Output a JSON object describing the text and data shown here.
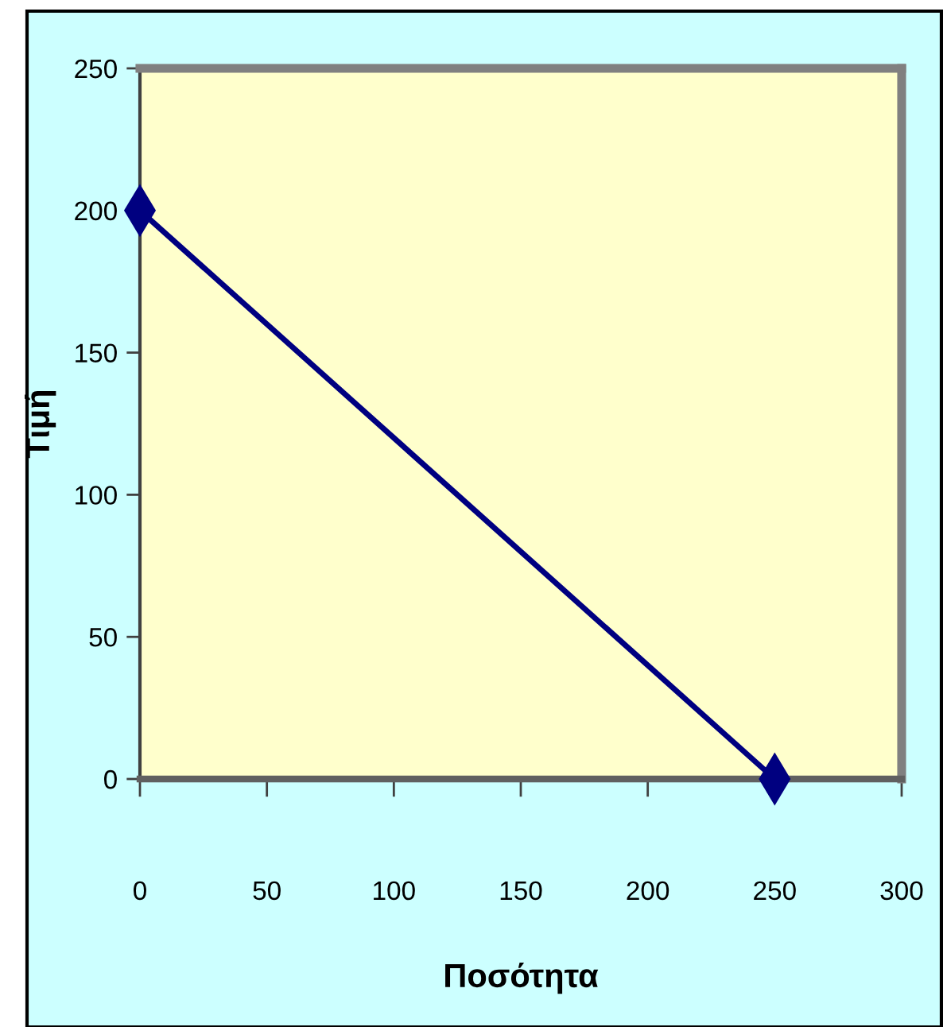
{
  "chart_data": {
    "type": "line",
    "xlabel": "Ποσότητα",
    "ylabel": "Τιμή",
    "x": [
      0,
      250
    ],
    "values": [
      200,
      0
    ],
    "color": "#000080",
    "marker": "diamond",
    "line_style": "solid",
    "xlim": [
      0,
      300
    ],
    "xticks": [
      0,
      50,
      100,
      150,
      200,
      250,
      300
    ],
    "ylim": [
      0,
      250
    ],
    "yticks": [
      0,
      50,
      100,
      150,
      200,
      250
    ],
    "grid": false
  }
}
